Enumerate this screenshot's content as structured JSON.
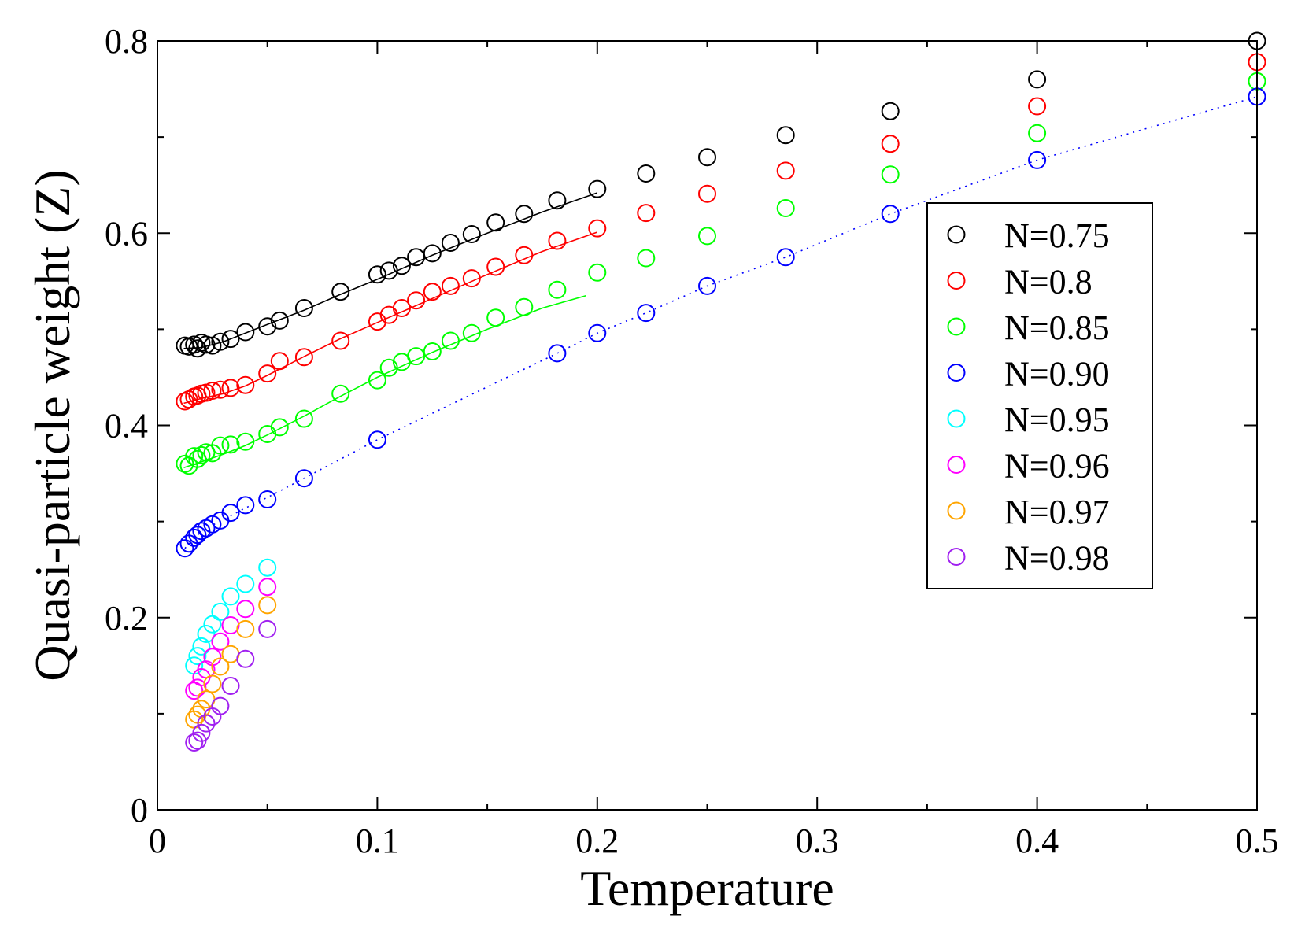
{
  "chart_data": {
    "type": "scatter",
    "title": "",
    "xlabel": "Temperature",
    "ylabel": "Quasi-particle weight (Z)",
    "xlim": [
      0,
      0.5
    ],
    "ylim": [
      0,
      0.8
    ],
    "xticks": [
      0,
      0.1,
      0.2,
      0.3,
      0.4,
      0.5
    ],
    "xtick_labels": [
      "0",
      "0.1",
      "0.2",
      "0.3",
      "0.4",
      "0.5"
    ],
    "yticks": [
      0,
      0.2,
      0.4,
      0.6,
      0.8
    ],
    "ytick_labels": [
      "0",
      "0.2",
      "0.4",
      "0.6",
      "0.8"
    ],
    "grid": false,
    "legend_position": "right-middle",
    "series": [
      {
        "name": "N=0.75",
        "color": "#000000",
        "points": [
          [
            0.0125,
            0.483
          ],
          [
            0.0143,
            0.482
          ],
          [
            0.0167,
            0.484
          ],
          [
            0.0182,
            0.48
          ],
          [
            0.02,
            0.486
          ],
          [
            0.0222,
            0.484
          ],
          [
            0.025,
            0.483
          ],
          [
            0.0286,
            0.487
          ],
          [
            0.0333,
            0.49
          ],
          [
            0.04,
            0.497
          ],
          [
            0.05,
            0.503
          ],
          [
            0.0556,
            0.509
          ],
          [
            0.0667,
            0.522
          ],
          [
            0.0833,
            0.539
          ],
          [
            0.1,
            0.557
          ],
          [
            0.1053,
            0.561
          ],
          [
            0.1111,
            0.566
          ],
          [
            0.1176,
            0.575
          ],
          [
            0.125,
            0.579
          ],
          [
            0.1333,
            0.59
          ],
          [
            0.1429,
            0.599
          ],
          [
            0.1538,
            0.611
          ],
          [
            0.1667,
            0.62
          ],
          [
            0.1818,
            0.634
          ],
          [
            0.2,
            0.646
          ],
          [
            0.2222,
            0.662
          ],
          [
            0.25,
            0.679
          ],
          [
            0.2857,
            0.702
          ],
          [
            0.3333,
            0.727
          ],
          [
            0.4,
            0.76
          ],
          [
            0.5,
            0.8
          ]
        ],
        "fit": [
          [
            0.012,
            0.48
          ],
          [
            0.02,
            0.481
          ],
          [
            0.03,
            0.487
          ],
          [
            0.04,
            0.496
          ],
          [
            0.05,
            0.505
          ],
          [
            0.067,
            0.52
          ],
          [
            0.083,
            0.536
          ],
          [
            0.1,
            0.552
          ],
          [
            0.125,
            0.577
          ],
          [
            0.15,
            0.6
          ],
          [
            0.175,
            0.622
          ],
          [
            0.2,
            0.642
          ]
        ]
      },
      {
        "name": "N=0.8",
        "color": "#ff0000",
        "points": [
          [
            0.0125,
            0.425
          ],
          [
            0.0143,
            0.427
          ],
          [
            0.0167,
            0.43
          ],
          [
            0.0182,
            0.431
          ],
          [
            0.02,
            0.433
          ],
          [
            0.0222,
            0.434
          ],
          [
            0.025,
            0.436
          ],
          [
            0.0286,
            0.437
          ],
          [
            0.0333,
            0.439
          ],
          [
            0.04,
            0.442
          ],
          [
            0.05,
            0.454
          ],
          [
            0.0556,
            0.467
          ],
          [
            0.0667,
            0.471
          ],
          [
            0.0833,
            0.488
          ],
          [
            0.1,
            0.508
          ],
          [
            0.1053,
            0.515
          ],
          [
            0.1111,
            0.522
          ],
          [
            0.1176,
            0.53
          ],
          [
            0.125,
            0.539
          ],
          [
            0.1333,
            0.545
          ],
          [
            0.1429,
            0.553
          ],
          [
            0.1538,
            0.565
          ],
          [
            0.1667,
            0.577
          ],
          [
            0.1818,
            0.592
          ],
          [
            0.2,
            0.605
          ],
          [
            0.2222,
            0.621
          ],
          [
            0.25,
            0.641
          ],
          [
            0.2857,
            0.665
          ],
          [
            0.3333,
            0.693
          ],
          [
            0.4,
            0.732
          ],
          [
            0.5,
            0.778
          ]
        ],
        "fit": [
          [
            0.012,
            0.423
          ],
          [
            0.02,
            0.428
          ],
          [
            0.03,
            0.433
          ],
          [
            0.04,
            0.441
          ],
          [
            0.05,
            0.452
          ],
          [
            0.067,
            0.472
          ],
          [
            0.083,
            0.49
          ],
          [
            0.1,
            0.507
          ],
          [
            0.125,
            0.532
          ],
          [
            0.15,
            0.557
          ],
          [
            0.175,
            0.581
          ],
          [
            0.2,
            0.601
          ]
        ]
      },
      {
        "name": "N=0.85",
        "color": "#00ff00",
        "points": [
          [
            0.0125,
            0.36
          ],
          [
            0.0143,
            0.358
          ],
          [
            0.0167,
            0.368
          ],
          [
            0.0182,
            0.365
          ],
          [
            0.02,
            0.369
          ],
          [
            0.0222,
            0.372
          ],
          [
            0.025,
            0.371
          ],
          [
            0.0286,
            0.379
          ],
          [
            0.0333,
            0.38
          ],
          [
            0.04,
            0.383
          ],
          [
            0.05,
            0.391
          ],
          [
            0.0556,
            0.398
          ],
          [
            0.0667,
            0.407
          ],
          [
            0.0833,
            0.433
          ],
          [
            0.1,
            0.447
          ],
          [
            0.1053,
            0.46
          ],
          [
            0.1111,
            0.466
          ],
          [
            0.1176,
            0.472
          ],
          [
            0.125,
            0.477
          ],
          [
            0.1333,
            0.488
          ],
          [
            0.1429,
            0.496
          ],
          [
            0.1538,
            0.512
          ],
          [
            0.1667,
            0.523
          ],
          [
            0.1818,
            0.541
          ],
          [
            0.2,
            0.559
          ],
          [
            0.2222,
            0.574
          ],
          [
            0.25,
            0.597
          ],
          [
            0.2857,
            0.626
          ],
          [
            0.3333,
            0.661
          ],
          [
            0.4,
            0.704
          ],
          [
            0.5,
            0.758
          ]
        ],
        "fit": [
          [
            0.012,
            0.356
          ],
          [
            0.02,
            0.362
          ],
          [
            0.03,
            0.37
          ],
          [
            0.04,
            0.379
          ],
          [
            0.05,
            0.39
          ],
          [
            0.067,
            0.41
          ],
          [
            0.083,
            0.43
          ],
          [
            0.1,
            0.45
          ],
          [
            0.125,
            0.476
          ],
          [
            0.15,
            0.5
          ],
          [
            0.175,
            0.522
          ],
          [
            0.195,
            0.535
          ]
        ]
      },
      {
        "name": "N=0.90",
        "color": "#0000ff",
        "points": [
          [
            0.0125,
            0.272
          ],
          [
            0.0143,
            0.277
          ],
          [
            0.0167,
            0.283
          ],
          [
            0.0182,
            0.286
          ],
          [
            0.02,
            0.29
          ],
          [
            0.0222,
            0.293
          ],
          [
            0.025,
            0.297
          ],
          [
            0.0286,
            0.301
          ],
          [
            0.0333,
            0.309
          ],
          [
            0.04,
            0.317
          ],
          [
            0.05,
            0.323
          ],
          [
            0.0667,
            0.345
          ],
          [
            0.1,
            0.385
          ],
          [
            0.1818,
            0.475
          ],
          [
            0.2,
            0.496
          ],
          [
            0.2222,
            0.517
          ],
          [
            0.25,
            0.545
          ],
          [
            0.2857,
            0.575
          ],
          [
            0.3333,
            0.62
          ],
          [
            0.4,
            0.676
          ],
          [
            0.5,
            0.742
          ]
        ],
        "fit": [
          [
            0.0125,
            0.272
          ],
          [
            0.02,
            0.29
          ],
          [
            0.03,
            0.302
          ],
          [
            0.04,
            0.314
          ],
          [
            0.05,
            0.325
          ],
          [
            0.0667,
            0.345
          ],
          [
            0.1,
            0.385
          ],
          [
            0.1818,
            0.475
          ],
          [
            0.2,
            0.496
          ],
          [
            0.2222,
            0.517
          ],
          [
            0.25,
            0.545
          ],
          [
            0.2857,
            0.575
          ],
          [
            0.3333,
            0.62
          ],
          [
            0.4,
            0.676
          ],
          [
            0.5,
            0.742
          ]
        ]
      },
      {
        "name": "N=0.95",
        "color": "#00ffff",
        "points": [
          [
            0.0167,
            0.15
          ],
          [
            0.0182,
            0.16
          ],
          [
            0.02,
            0.17
          ],
          [
            0.0222,
            0.183
          ],
          [
            0.025,
            0.193
          ],
          [
            0.0286,
            0.206
          ],
          [
            0.0333,
            0.222
          ],
          [
            0.04,
            0.235
          ],
          [
            0.05,
            0.252
          ]
        ]
      },
      {
        "name": "N=0.96",
        "color": "#ff00ff",
        "points": [
          [
            0.0167,
            0.124
          ],
          [
            0.0182,
            0.127
          ],
          [
            0.02,
            0.138
          ],
          [
            0.0222,
            0.146
          ],
          [
            0.025,
            0.159
          ],
          [
            0.0286,
            0.175
          ],
          [
            0.0333,
            0.192
          ],
          [
            0.04,
            0.209
          ],
          [
            0.05,
            0.232
          ]
        ]
      },
      {
        "name": "N=0.97",
        "color": "#ffa500",
        "points": [
          [
            0.0167,
            0.094
          ],
          [
            0.0182,
            0.099
          ],
          [
            0.02,
            0.105
          ],
          [
            0.0222,
            0.115
          ],
          [
            0.025,
            0.131
          ],
          [
            0.0286,
            0.149
          ],
          [
            0.0333,
            0.162
          ],
          [
            0.04,
            0.188
          ],
          [
            0.05,
            0.213
          ]
        ]
      },
      {
        "name": "N=0.98",
        "color": "#a020f0",
        "points": [
          [
            0.0167,
            0.07
          ],
          [
            0.0182,
            0.072
          ],
          [
            0.02,
            0.08
          ],
          [
            0.0222,
            0.09
          ],
          [
            0.025,
            0.097
          ],
          [
            0.0286,
            0.108
          ],
          [
            0.0333,
            0.129
          ],
          [
            0.04,
            0.157
          ],
          [
            0.05,
            0.188
          ]
        ]
      }
    ]
  }
}
